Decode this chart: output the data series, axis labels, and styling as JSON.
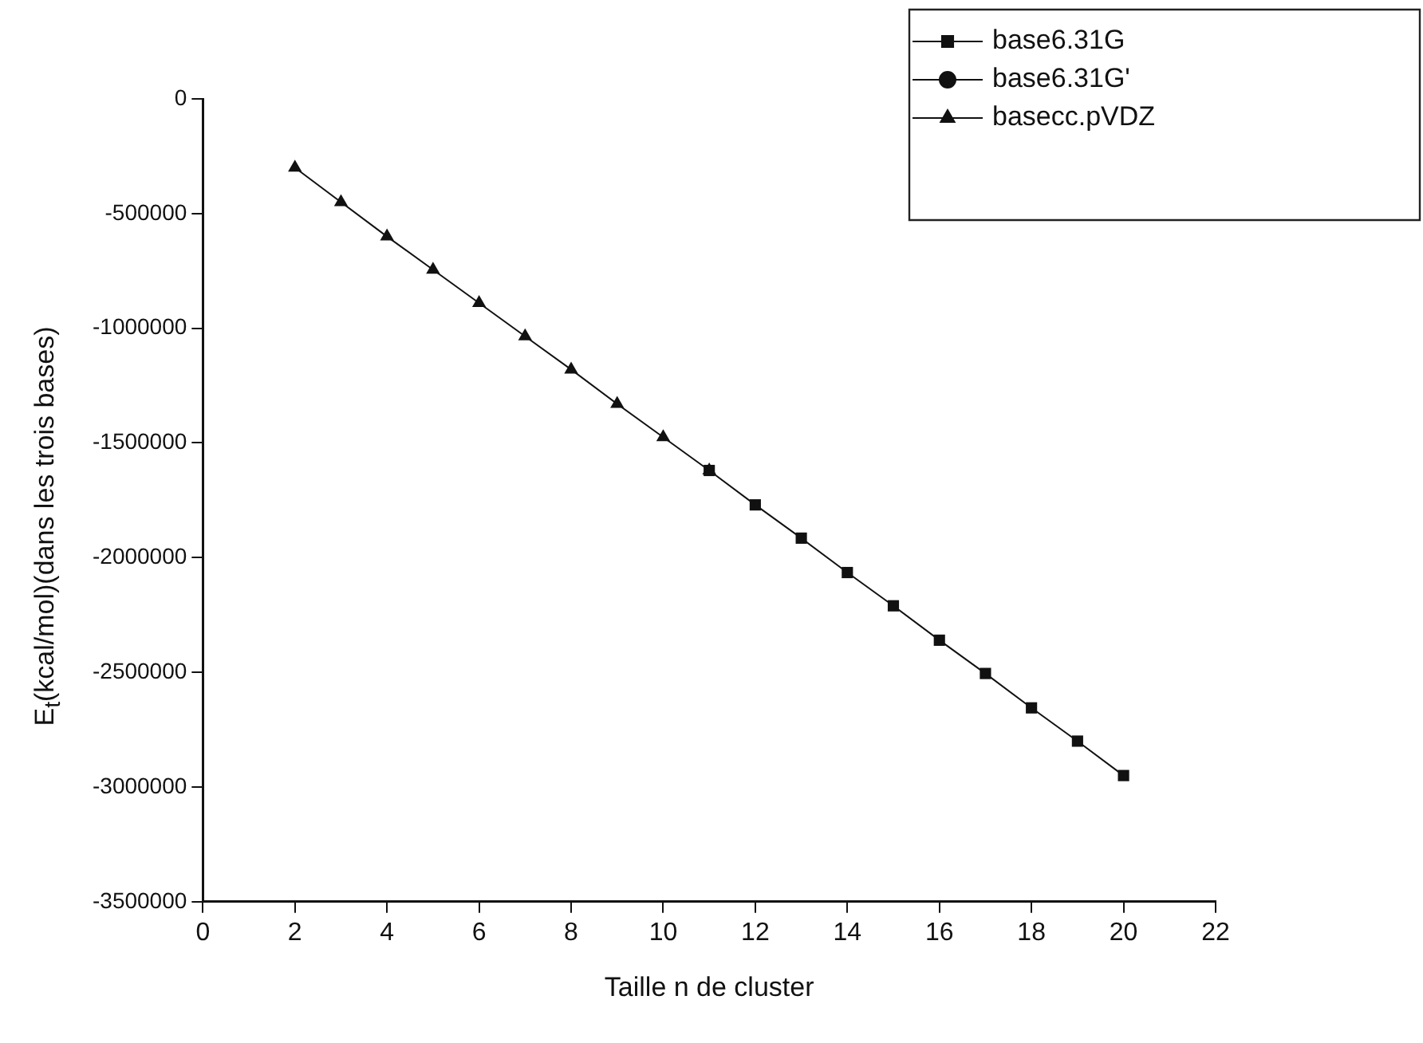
{
  "chart_data": {
    "type": "line",
    "xlabel": "Taille n de cluster",
    "ylabel": "E$_{t}$(kcal/mol)(dans les trois bases)",
    "x": [
      2,
      3,
      4,
      5,
      6,
      7,
      8,
      9,
      10,
      11,
      12,
      13,
      14,
      15,
      16,
      17,
      18,
      19,
      20
    ],
    "xlim": [
      0,
      22
    ],
    "xticks": [
      0,
      2,
      4,
      6,
      8,
      10,
      12,
      14,
      16,
      18,
      20,
      22
    ],
    "ylim": [
      -3500000,
      0
    ],
    "yticks": [
      -3500000,
      -3000000,
      -2500000,
      -2000000,
      -1500000,
      -1000000,
      -500000,
      0
    ],
    "grid": false,
    "legend": "top right",
    "line_style": "solid",
    "series": [
      {
        "name": "base6.31G",
        "color": "#111111",
        "marker": "square",
        "values": [
          null,
          null,
          null,
          null,
          null,
          null,
          null,
          null,
          null,
          -1620000,
          -1770000,
          -1915000,
          -2065000,
          -2210000,
          -2360000,
          -2505000,
          -2655000,
          -2800000,
          -2950000
        ]
      },
      {
        "name": "base6.31G'",
        "color": "#111111",
        "marker": "circle",
        "values": [
          null,
          null,
          null,
          null,
          null,
          null,
          null,
          null,
          null,
          null,
          null,
          null,
          null,
          null,
          null,
          null,
          null,
          null,
          null
        ]
      },
      {
        "name": "basecc.pVDZ",
        "color": "#111111",
        "marker": "triangle",
        "values": [
          -300000,
          -450000,
          -600000,
          -745000,
          -890000,
          -1035000,
          -1180000,
          -1330000,
          -1475000,
          -1620000,
          null,
          null,
          null,
          null,
          null,
          null,
          null,
          null,
          null
        ]
      }
    ]
  }
}
